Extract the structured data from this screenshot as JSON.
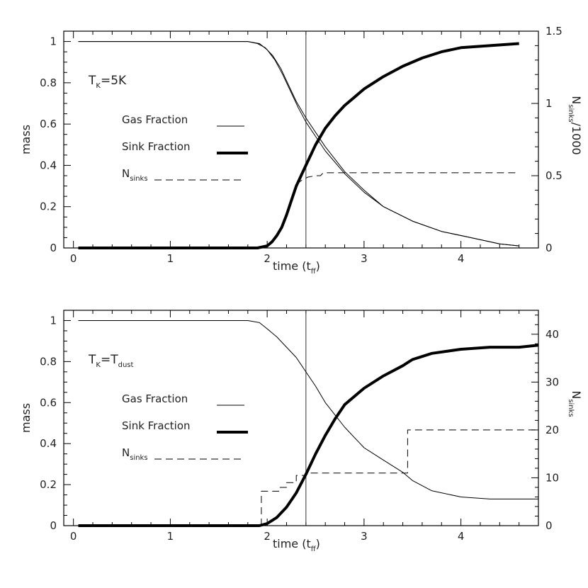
{
  "chart_data": [
    {
      "type": "line",
      "panel": "top",
      "annotation": {
        "main": "T",
        "sub": "K",
        "rest": "=5K"
      },
      "xlabel": "time (t",
      "xlabel_sub": "ff",
      "xlabel_end": ")",
      "ylabel": "mass",
      "y2label": "N",
      "y2label_sub": "sinks",
      "y2label_end": "/1000",
      "xlim": [
        -0.1,
        4.8
      ],
      "ylim": [
        0,
        1.05
      ],
      "y2lim": [
        0,
        1.5
      ],
      "xticks": [
        "0",
        "1",
        "2",
        "3",
        "4"
      ],
      "yticks": [
        "0",
        "0.2",
        "0.4",
        "0.6",
        "0.8",
        "1"
      ],
      "y2ticks": [
        "0",
        "0.5",
        "1",
        "1.5"
      ],
      "vline_x": 2.4,
      "legend": [
        {
          "label": "Gas Fraction",
          "style": "thin"
        },
        {
          "label": "Sink Fraction",
          "style": "thick"
        },
        {
          "label": "N",
          "label_sub": "sinks",
          "style": "dashed"
        }
      ],
      "series": [
        {
          "name": "Gas Fraction",
          "style": "thin",
          "axis": "left",
          "x": [
            0.05,
            1.8,
            1.92,
            2.0,
            2.08,
            2.16,
            2.24,
            2.32,
            2.4,
            2.5,
            2.6,
            2.8,
            3.0,
            3.2,
            3.5,
            3.8,
            4.1,
            4.4,
            4.6
          ],
          "y": [
            1.0,
            1.0,
            0.99,
            0.96,
            0.91,
            0.84,
            0.76,
            0.68,
            0.61,
            0.54,
            0.47,
            0.36,
            0.27,
            0.2,
            0.13,
            0.08,
            0.05,
            0.02,
            0.01
          ]
        },
        {
          "name": "Gas Fraction 2",
          "style": "thin",
          "axis": "left",
          "x": [
            0.05,
            1.8,
            1.9,
            1.98,
            2.06,
            2.14,
            2.22,
            2.3,
            2.4,
            2.5,
            2.6,
            2.8,
            3.0,
            3.2,
            3.5,
            3.8,
            4.1,
            4.4,
            4.6
          ],
          "y": [
            1.0,
            1.0,
            0.99,
            0.97,
            0.93,
            0.87,
            0.79,
            0.71,
            0.63,
            0.56,
            0.49,
            0.37,
            0.28,
            0.2,
            0.13,
            0.08,
            0.05,
            0.02,
            0.01
          ]
        },
        {
          "name": "Sink Fraction",
          "style": "thick",
          "axis": "left",
          "x": [
            0.05,
            1.8,
            1.9,
            2.0,
            2.05,
            2.1,
            2.15,
            2.2,
            2.25,
            2.3,
            2.4,
            2.5,
            2.6,
            2.7,
            2.8,
            2.9,
            3.0,
            3.2,
            3.4,
            3.6,
            3.8,
            4.0,
            4.3,
            4.6
          ],
          "y": [
            0.0,
            0.0,
            0.0,
            0.01,
            0.03,
            0.06,
            0.1,
            0.16,
            0.23,
            0.3,
            0.4,
            0.5,
            0.58,
            0.64,
            0.69,
            0.73,
            0.77,
            0.83,
            0.88,
            0.92,
            0.95,
            0.97,
            0.98,
            0.99
          ]
        },
        {
          "name": "Nsinks",
          "style": "dashed",
          "axis": "right",
          "x": [
            2.3,
            2.36,
            2.42,
            2.5,
            2.55,
            2.58,
            4.6
          ],
          "y": [
            0.44,
            0.47,
            0.49,
            0.5,
            0.5,
            0.52,
            0.52
          ]
        }
      ]
    },
    {
      "type": "line",
      "panel": "bottom",
      "annotation": {
        "main": "T",
        "sub": "K",
        "rest": "=T",
        "sub2": "dust"
      },
      "xlabel": "time (t",
      "xlabel_sub": "ff",
      "xlabel_end": ")",
      "ylabel": "mass",
      "y2label": "N",
      "y2label_sub": "sinks",
      "y2label_end": "",
      "xlim": [
        -0.1,
        4.8
      ],
      "ylim": [
        0,
        1.05
      ],
      "y2lim": [
        0,
        45
      ],
      "xticks": [
        "0",
        "1",
        "2",
        "3",
        "4"
      ],
      "yticks": [
        "0",
        "0.2",
        "0.4",
        "0.6",
        "0.8",
        "1"
      ],
      "y2ticks": [
        "0",
        "10",
        "20",
        "30",
        "40"
      ],
      "vline_x": 2.4,
      "legend": [
        {
          "label": "Gas Fraction",
          "style": "thin"
        },
        {
          "label": "Sink Fraction",
          "style": "thick"
        },
        {
          "label": "N",
          "label_sub": "sinks",
          "style": "dashed"
        }
      ],
      "series": [
        {
          "name": "Gas Fraction",
          "style": "thin",
          "axis": "left",
          "x": [
            0.05,
            1.8,
            1.92,
            2.0,
            2.1,
            2.2,
            2.3,
            2.4,
            2.5,
            2.6,
            2.8,
            3.0,
            3.2,
            3.4,
            3.5,
            3.7,
            4.0,
            4.3,
            4.6,
            4.8
          ],
          "y": [
            1.0,
            1.0,
            0.99,
            0.96,
            0.92,
            0.87,
            0.82,
            0.75,
            0.68,
            0.6,
            0.48,
            0.38,
            0.32,
            0.26,
            0.22,
            0.17,
            0.14,
            0.13,
            0.13,
            0.13
          ]
        },
        {
          "name": "Sink Fraction",
          "style": "thick",
          "axis": "left",
          "x": [
            0.05,
            1.8,
            1.92,
            2.0,
            2.1,
            2.2,
            2.3,
            2.4,
            2.5,
            2.6,
            2.7,
            2.8,
            3.0,
            3.2,
            3.4,
            3.5,
            3.7,
            4.0,
            4.3,
            4.6,
            4.8
          ],
          "y": [
            0.0,
            0.0,
            0.0,
            0.01,
            0.04,
            0.09,
            0.16,
            0.25,
            0.35,
            0.44,
            0.52,
            0.59,
            0.67,
            0.73,
            0.78,
            0.81,
            0.84,
            0.86,
            0.87,
            0.87,
            0.88
          ]
        },
        {
          "name": "Nsinks",
          "style": "dashed",
          "axis": "right",
          "x": [
            1.94,
            1.94,
            2.12,
            2.12,
            2.2,
            2.2,
            2.3,
            2.3,
            2.4,
            2.4,
            3.45,
            3.45,
            4.8
          ],
          "y": [
            0,
            7.2,
            7.2,
            8.0,
            8.0,
            9.0,
            9.0,
            10.5,
            10.5,
            11.0,
            11.0,
            20.0,
            20.0
          ]
        }
      ]
    }
  ]
}
